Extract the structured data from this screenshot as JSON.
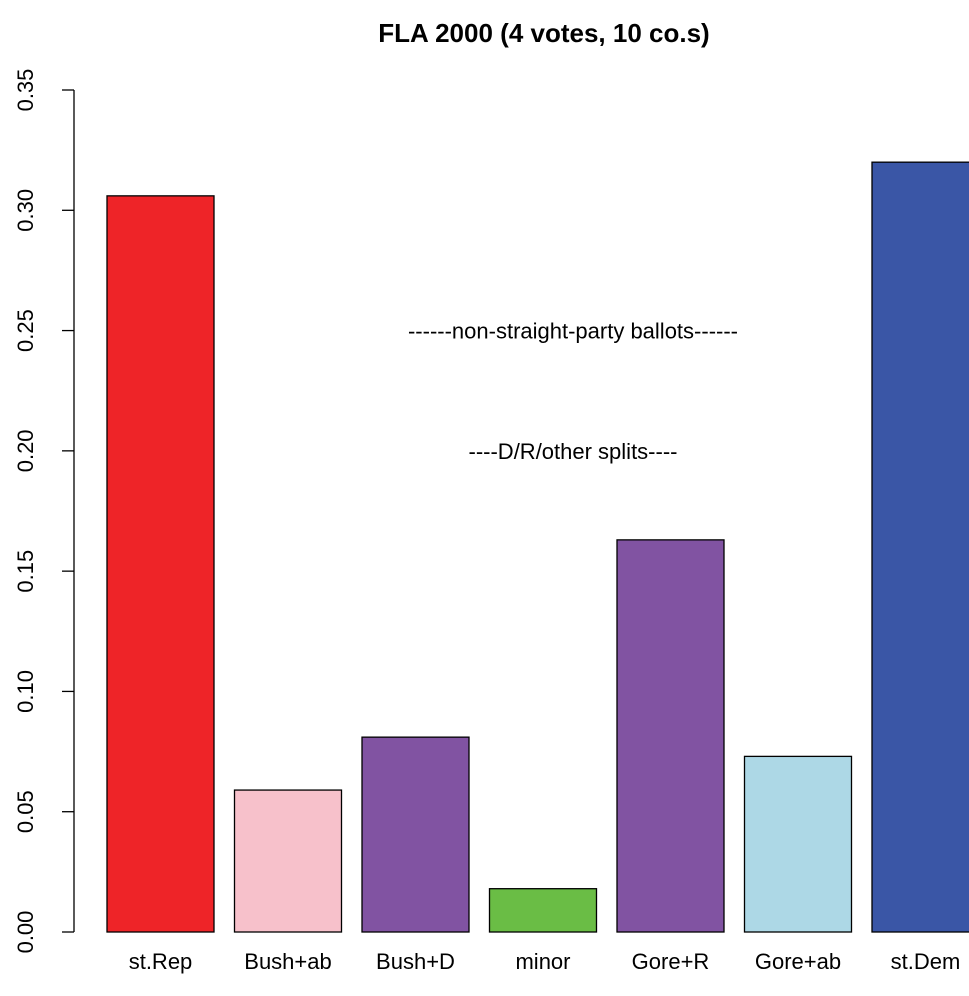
{
  "chart_data": {
    "type": "bar",
    "title": "FLA 2000 (4 votes, 10 co.s)",
    "xlabel": "",
    "ylabel": "",
    "categories": [
      "st.Rep",
      "Bush+ab",
      "Bush+D",
      "minor",
      "Gore+R",
      "Gore+ab",
      "st.Dem"
    ],
    "values": [
      0.306,
      0.059,
      0.081,
      0.018,
      0.163,
      0.073,
      0.32
    ],
    "colors": [
      "#ee2428",
      "#f7c1cb",
      "#8153a2",
      "#6abd45",
      "#8153a2",
      "#add8e6",
      "#3a56a6"
    ],
    "ylim": [
      0,
      0.35
    ],
    "yticks": [
      "0.00",
      "0.05",
      "0.10",
      "0.15",
      "0.20",
      "0.25",
      "0.30",
      "0.35"
    ],
    "grid": false,
    "annotations": [
      {
        "text": "------non-straight-party ballots------",
        "y": 0.25
      },
      {
        "text": "----D/R/other splits----",
        "y": 0.2
      }
    ]
  }
}
